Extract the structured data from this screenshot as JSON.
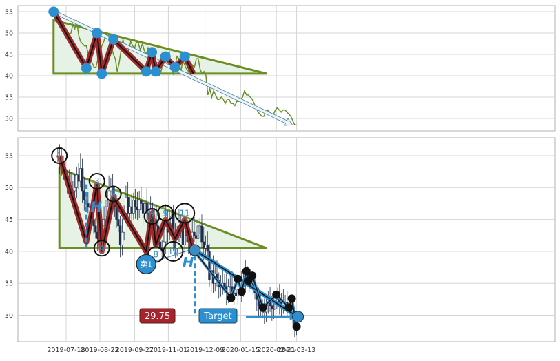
{
  "colors": {
    "grid": "#d4d4d4",
    "frame": "#b0b0b0",
    "price_line": "#6a8f2a",
    "triangle_stroke": "#6b8e23",
    "triangle_fill": "#e6f2e6",
    "zigzag_outer": "#9e2a2b",
    "zigzag_inner": "#111111",
    "pivot_blue": "#2b8fd0",
    "target_blue": "#2b8fd0",
    "label_red": "#a8242c",
    "forecast_black": "#111111",
    "candle_up": "#8b1a1a",
    "candle_down": "#1f2f4f",
    "tick_text": "#333333"
  },
  "chart_data": [
    {
      "type": "line",
      "panel": "top",
      "grid": true,
      "ylim": [
        27,
        56.5
      ],
      "yticks": [
        "30",
        "35",
        "40",
        "45",
        "50",
        "55"
      ],
      "series": [
        {
          "values": [
            55,
            54,
            53.5,
            52.5,
            51.5,
            51,
            50,
            49.5,
            49.5,
            50,
            52,
            51,
            53,
            49.5,
            48,
            47.5,
            47,
            47,
            45,
            44,
            43,
            42,
            42,
            44,
            45,
            47,
            48,
            49.5,
            50,
            49,
            47,
            45,
            44,
            41,
            43,
            46,
            48.5,
            46,
            47,
            46,
            48,
            47,
            46.5,
            48,
            47.5,
            46,
            47.5,
            46,
            45,
            46.5,
            45,
            45,
            44,
            41.5,
            40.5,
            40,
            41.5,
            45,
            43,
            44.5,
            45.5,
            42,
            40.5,
            42.5,
            44.5,
            44,
            41,
            43.5,
            42.5,
            41.5,
            41,
            43,
            42.5,
            42,
            44,
            44,
            41.5,
            40.5,
            41,
            40,
            35.5,
            37,
            35,
            36.5,
            35.5,
            34.5,
            34.5,
            35,
            34.5,
            33.5,
            34.5,
            34.5,
            33.5,
            33.5,
            33,
            34,
            34,
            34.5,
            35,
            36.5,
            35.5,
            35.5,
            35,
            34.5,
            33.5,
            32.5,
            31.5,
            31,
            30.5,
            30.5,
            31.5,
            32,
            31.5,
            31,
            31,
            32,
            32.5,
            32,
            31.5,
            32,
            32,
            31.5,
            31,
            30.5,
            29.5,
            28.5,
            28.5
          ]
        }
      ],
      "pivots": [
        {
          "x": "2019-07-05",
          "y": 55
        },
        {
          "x": "2019-08-08",
          "y": 41.8
        },
        {
          "x": "2019-08-19",
          "y": 50
        },
        {
          "x": "2019-08-24",
          "y": 40.5
        },
        {
          "x": "2019-09-05",
          "y": 48.5
        },
        {
          "x": "2019-10-09",
          "y": 41
        },
        {
          "x": "2019-10-15",
          "y": 45.5
        },
        {
          "x": "2019-10-19",
          "y": 41
        },
        {
          "x": "2019-10-29",
          "y": 44.5
        },
        {
          "x": "2019-11-08",
          "y": 42
        },
        {
          "x": "2019-11-18",
          "y": 44.5
        },
        {
          "x": "2019-11-27",
          "y": 40.5
        }
      ],
      "triangle": [
        {
          "x": "2019-07-05",
          "y": 53
        },
        {
          "x": "2020-02-11",
          "y": 40.5
        },
        {
          "x": "2019-07-05",
          "y": 40.5
        }
      ],
      "trend_arrow": [
        {
          "x": "2019-07-05",
          "y": 55
        },
        {
          "x": "2020-03-13",
          "y": 28.5
        }
      ]
    },
    {
      "type": "bar",
      "panel": "bottom",
      "grid": true,
      "ylim": [
        25.5,
        58
      ],
      "yticks": [
        "30",
        "35",
        "40",
        "45",
        "50",
        "55"
      ],
      "xticks": [
        "2019-07-18",
        "2019-08-22",
        "2019-09-27",
        "2019-11-01",
        "2019-12-09",
        "2020-01-15",
        "2020-02-21",
        "2020-03-13"
      ],
      "pivot_labels": [
        {
          "label": "1",
          "x": "2019-07-11",
          "y": 55
        },
        {
          "label": "3",
          "x": "2019-08-19",
          "y": 51
        },
        {
          "label": "4",
          "x": "2019-08-24",
          "y": 40.5
        },
        {
          "label": "5",
          "x": "2019-09-05",
          "y": 49
        },
        {
          "label": "7",
          "x": "2019-10-15",
          "y": 45.5
        },
        {
          "label": "8",
          "x": "2019-10-19",
          "y": 39.5
        },
        {
          "label": "9",
          "x": "2019-10-29",
          "y": 46
        },
        {
          "label": "10",
          "x": "2019-11-06",
          "y": 40
        },
        {
          "label": "11",
          "x": "2019-11-18",
          "y": 46
        },
        {
          "label": "卖1",
          "x": "2019-10-09",
          "y": 38
        }
      ],
      "target_value": "29.75",
      "target_label": "Target",
      "height_marker": "H"
    }
  ]
}
